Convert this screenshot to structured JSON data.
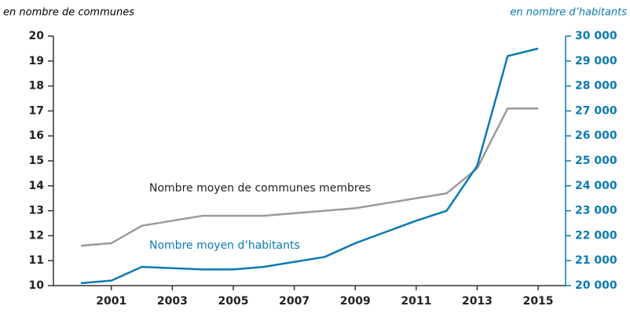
{
  "chart_data": {
    "type": "line",
    "y_label": "en nombre de communes",
    "y2_label": "en nombre d’habitants",
    "annotations": [
      "Nombre moyen de communes membres",
      "Nombre moyen d’habitants"
    ],
    "x": [
      2000,
      2001,
      2002,
      2003,
      2004,
      2005,
      2006,
      2007,
      2008,
      2009,
      2010,
      2011,
      2012,
      2013,
      2014,
      2015
    ],
    "xlim": [
      1999.1,
      2015.9
    ],
    "xticks": [
      2001,
      2003,
      2005,
      2007,
      2009,
      2011,
      2013,
      2015
    ],
    "ylim": [
      10,
      20
    ],
    "yticks": [
      10,
      11,
      12,
      13,
      14,
      15,
      16,
      17,
      18,
      19,
      20
    ],
    "y2lim": [
      20000,
      30000
    ],
    "y2ticks": [
      {
        "value": 20000,
        "label": "20 000"
      },
      {
        "value": 21000,
        "label": "21 000"
      },
      {
        "value": 22000,
        "label": "22 000"
      },
      {
        "value": 23000,
        "label": "23 000"
      },
      {
        "value": 24000,
        "label": "24 000"
      },
      {
        "value": 25000,
        "label": "25 000"
      },
      {
        "value": 26000,
        "label": "26 000"
      },
      {
        "value": 27000,
        "label": "27 000"
      },
      {
        "value": 28000,
        "label": "28 000"
      },
      {
        "value": 29000,
        "label": "29 000"
      },
      {
        "value": 30000,
        "label": "30 000"
      }
    ],
    "y2color": "#0a7ab3",
    "series": [
      {
        "name": "Nombre moyen de communes membres",
        "color": "#9a9a9a",
        "axis": "y",
        "values": [
          11.6,
          11.7,
          12.4,
          12.6,
          12.8,
          12.8,
          12.8,
          12.9,
          13.0,
          13.1,
          13.3,
          13.5,
          13.7,
          14.7,
          17.1,
          17.1
        ]
      },
      {
        "name": "Nombre moyen d’habitants",
        "color": "#0a7ab3",
        "axis": "y2",
        "values": [
          20100,
          20200,
          20750,
          20700,
          20650,
          20650,
          20750,
          20950,
          21150,
          21700,
          22150,
          22600,
          23000,
          24800,
          29200,
          29500
        ]
      }
    ]
  }
}
